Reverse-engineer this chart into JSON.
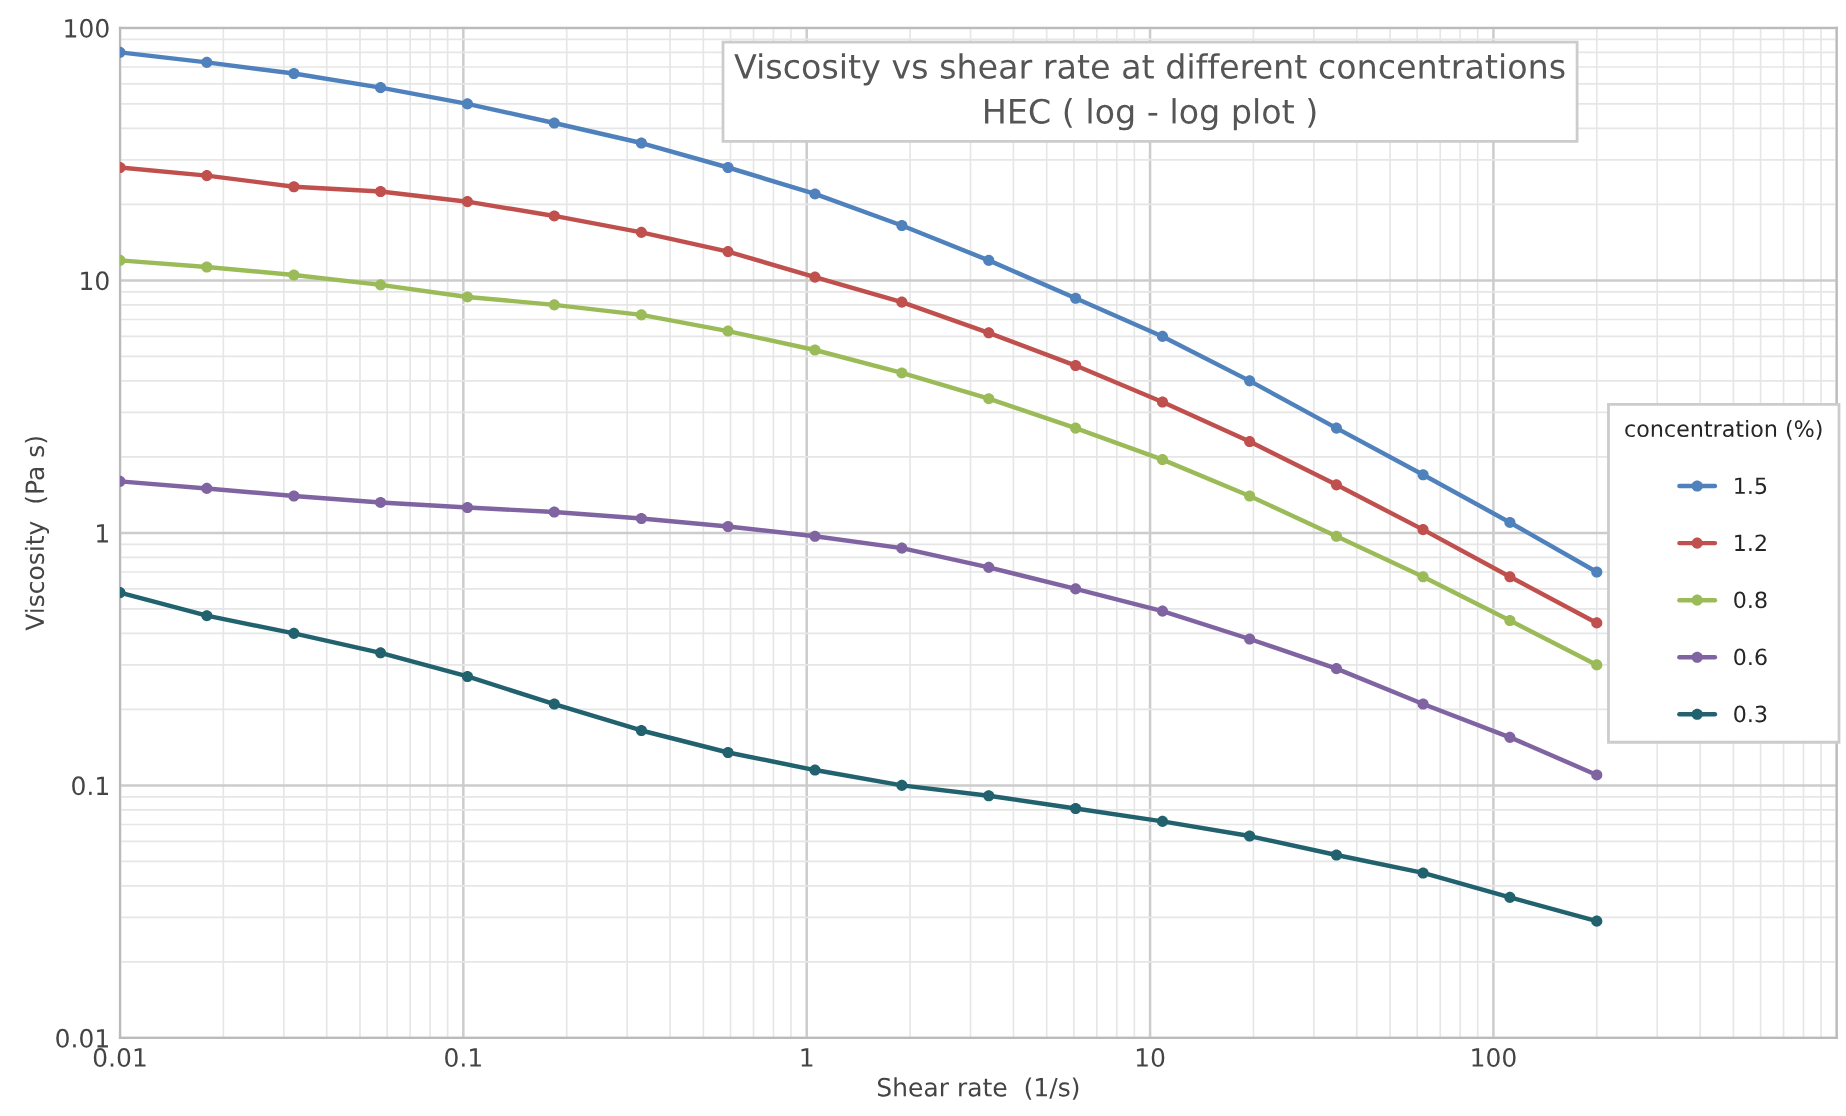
{
  "chart_data": {
    "type": "line",
    "title": "Viscosity vs shear rate at different concentrations\nHEC ( log - log plot )",
    "xlabel": "Shear rate  (1/s)",
    "ylabel": "Viscosity  (Pa s)",
    "legend_title": "concentration (%)",
    "x": [
      0.01,
      0.0179,
      0.0321,
      0.0574,
      0.1028,
      0.184,
      0.33,
      0.59,
      1.057,
      1.893,
      3.39,
      6.07,
      10.87,
      19.5,
      34.9,
      62.4,
      111.7,
      200
    ],
    "series": [
      {
        "name": "1.5",
        "color": "#4f81bd",
        "values": [
          80,
          73,
          66,
          58,
          50,
          42,
          35,
          28,
          22,
          16.5,
          12,
          8.5,
          6,
          4,
          2.6,
          1.7,
          1.1,
          0.7
        ]
      },
      {
        "name": "1.2",
        "color": "#c0504d",
        "values": [
          28,
          26,
          23.5,
          22.5,
          20.5,
          18,
          15.5,
          13,
          10.3,
          8.2,
          6.2,
          4.6,
          3.3,
          2.3,
          1.55,
          1.03,
          0.67,
          0.44
        ]
      },
      {
        "name": "0.8",
        "color": "#9bbb59",
        "values": [
          12,
          11.3,
          10.5,
          9.6,
          8.6,
          8,
          7.3,
          6.3,
          5.3,
          4.3,
          3.4,
          2.6,
          1.95,
          1.4,
          0.97,
          0.67,
          0.45,
          0.3
        ]
      },
      {
        "name": "0.6",
        "color": "#8064a2",
        "values": [
          1.6,
          1.5,
          1.4,
          1.32,
          1.26,
          1.21,
          1.14,
          1.06,
          0.97,
          0.87,
          0.73,
          0.6,
          0.49,
          0.38,
          0.29,
          0.21,
          0.155,
          0.11
        ]
      },
      {
        "name": "0.3",
        "color": "#21626e",
        "values": [
          0.58,
          0.47,
          0.4,
          0.335,
          0.27,
          0.21,
          0.165,
          0.135,
          0.115,
          0.1,
          0.091,
          0.081,
          0.072,
          0.063,
          0.053,
          0.045,
          0.036,
          0.029
        ]
      }
    ],
    "log": "xy",
    "xlim": [
      0.01,
      1000
    ],
    "xticks": [
      0.01,
      0.1,
      1,
      10,
      100,
      {
        "value": 1000,
        "label": null
      }
    ],
    "ylim": [
      0.01,
      100
    ],
    "yticks": [
      0.01,
      0.1,
      1,
      10,
      100
    ],
    "grid": true,
    "legend": "right",
    "marker": "circle",
    "line_style": "solid"
  }
}
